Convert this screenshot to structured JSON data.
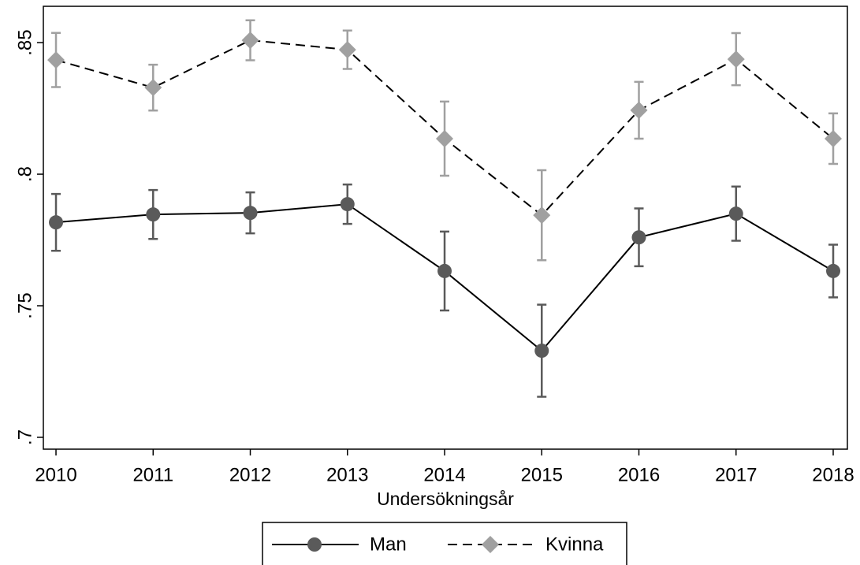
{
  "chart_data": {
    "type": "line",
    "x_label": "Undersökningsår",
    "x": [
      2010,
      2011,
      2012,
      2013,
      2014,
      2015,
      2016,
      2017,
      2018
    ],
    "xlim": [
      2009.87,
      2018.146
    ],
    "xticks": [
      2010,
      2011,
      2012,
      2013,
      2014,
      2015,
      2016,
      2017,
      2018
    ],
    "ylim": [
      0.6955,
      0.8638
    ],
    "yticks": [
      {
        "value": 0.7,
        "label": ".7"
      },
      {
        "value": 0.75,
        "label": ".75"
      },
      {
        "value": 0.8,
        "label": ".8"
      },
      {
        "value": 0.85,
        "label": ".85"
      }
    ],
    "legend": "bottom",
    "series": [
      {
        "name": "Man",
        "color": "#5a5a5a",
        "line_color": "#000000",
        "marker": "circle",
        "dash": false,
        "values": [
          0.7817,
          0.7847,
          0.7853,
          0.7886,
          0.7632,
          0.7329,
          0.776,
          0.785,
          0.7632
        ],
        "errors": [
          0.0108,
          0.0093,
          0.0078,
          0.0075,
          0.015,
          0.0175,
          0.011,
          0.0103,
          0.01
        ]
      },
      {
        "name": "Kvinna",
        "color": "#a0a0a0",
        "line_color": "#000000",
        "marker": "diamond",
        "dash": true,
        "values": [
          0.8434,
          0.8329,
          0.8509,
          0.8473,
          0.8135,
          0.7844,
          0.8243,
          0.8437,
          0.8135
        ],
        "errors": [
          0.0103,
          0.0087,
          0.0076,
          0.0073,
          0.0141,
          0.0171,
          0.0108,
          0.0099,
          0.0096
        ]
      }
    ]
  }
}
